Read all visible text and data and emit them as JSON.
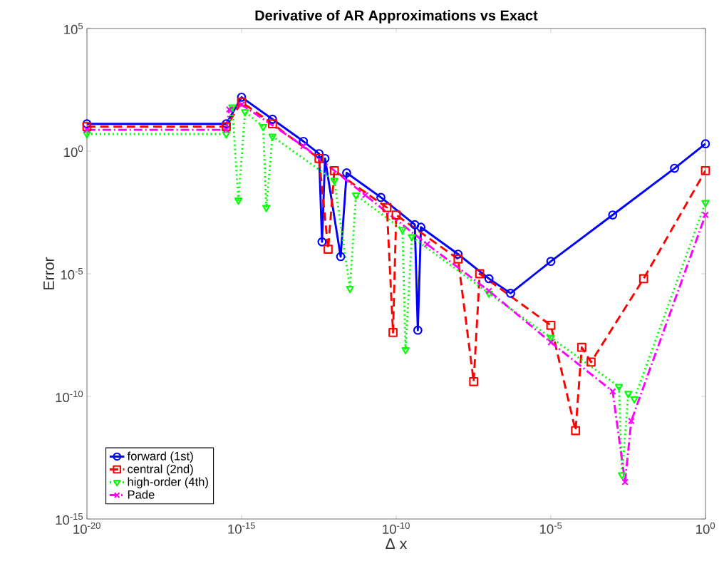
{
  "chart_data": {
    "type": "line",
    "title": "Derivative of AR Approximations vs Exact",
    "xlabel": "Δ x",
    "ylabel": "Error",
    "log": "xy",
    "xlim": [
      1e-20,
      1
    ],
    "ylim": [
      1e-15,
      100000
    ],
    "xticks": [
      {
        "value": 1e-20,
        "label": "10$^{-20}$"
      },
      {
        "value": 1e-15,
        "label": "10$^{-15}$"
      },
      {
        "value": 1e-10,
        "label": "10$^{-10}$"
      },
      {
        "value": 1e-05,
        "label": "10$^{-5}$"
      },
      {
        "value": 1,
        "label": "10$^{0}$"
      }
    ],
    "yticks": [
      {
        "value": 1e-15,
        "label": "10$^{-15}$"
      },
      {
        "value": 1e-10,
        "label": "10$^{-10}$"
      },
      {
        "value": 1e-05,
        "label": "10$^{-5}$"
      },
      {
        "value": 1,
        "label": "10$^{0}$"
      },
      {
        "value": 100000,
        "label": "10$^{5}$"
      }
    ],
    "grid": false,
    "legend": "bottom left",
    "series": [
      {
        "name": "forward (1st)",
        "color": "#0000ff",
        "marker": "circle",
        "line_style": "solid",
        "x": [
          1e-20,
          3.2e-16,
          1e-15,
          1e-14,
          1e-13,
          3.2e-13,
          4e-13,
          5e-13,
          1.6e-12,
          2.5e-12,
          3.2e-11,
          4e-10,
          5e-10,
          6.3e-10,
          1e-08,
          1e-07,
          5e-07,
          1e-05,
          0.001,
          0.1,
          1
        ],
        "values": [
          13,
          13,
          158,
          20,
          2.5,
          0.79,
          0.0002,
          0.5,
          5e-05,
          0.13,
          0.013,
          0.001,
          5e-08,
          0.00079,
          6.3e-05,
          6.3e-06,
          1.6e-06,
          3.2e-05,
          0.0025,
          0.2,
          2
        ]
      },
      {
        "name": "central (2nd)",
        "color": "#ff0000",
        "marker": "square",
        "line_style": "dashed",
        "x": [
          1e-20,
          3.2e-16,
          1e-15,
          1e-14,
          3.2e-13,
          6.3e-13,
          1e-12,
          5e-11,
          7.9e-11,
          1e-10,
          1e-08,
          3.2e-08,
          5e-08,
          1e-05,
          6.3e-05,
          0.0001,
          0.0002,
          0.01,
          1
        ],
        "values": [
          10,
          10,
          100,
          13,
          0.5,
          0.0001,
          0.16,
          0.005,
          4e-08,
          0.0025,
          4e-05,
          4e-10,
          1e-05,
          7.9e-08,
          4e-12,
          1e-08,
          2.5e-09,
          6.3e-06,
          0.16
        ]
      },
      {
        "name": "high-order (4th)",
        "color": "#00ff00",
        "marker": "triangle",
        "line_style": "dotted",
        "x": [
          1e-20,
          3.2e-16,
          5e-16,
          7.9e-16,
          1.3e-15,
          5e-15,
          6.3e-15,
          1e-14,
          1e-12,
          3.2e-12,
          5e-12,
          1.6e-10,
          2e-10,
          3.2e-10,
          1e-07,
          1e-05,
          0.0016,
          0.002,
          0.0032,
          0.005,
          1
        ],
        "values": [
          5,
          5,
          63,
          0.01,
          40,
          10,
          0.005,
          4,
          0.063,
          2.5e-06,
          0.016,
          0.00063,
          7.9e-09,
          0.00032,
          1.6e-06,
          2.5e-08,
          2.5e-10,
          6.3e-14,
          1.3e-10,
          7.9e-11,
          0.0079
        ]
      },
      {
        "name": "Pade",
        "color": "#ff00ff",
        "marker": "cross",
        "line_style": "dashdotted",
        "x": [
          1e-20,
          3.2e-16,
          4e-16,
          1e-15,
          1e-13,
          1e-11,
          1e-09,
          1e-07,
          1e-05,
          0.001,
          0.0025,
          0.004,
          1
        ],
        "values": [
          7.4,
          7.4,
          50,
          79,
          1.6,
          0.016,
          0.00016,
          2e-06,
          1.6e-08,
          1.6e-10,
          3.2e-14,
          1e-11,
          0.0025
        ]
      }
    ]
  }
}
